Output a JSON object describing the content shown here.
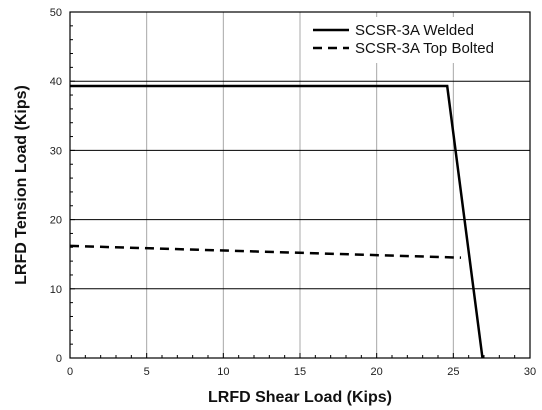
{
  "chart_data": {
    "type": "line",
    "title": "",
    "xlabel": "LRFD Shear Load (Kips)",
    "ylabel": "LRFD Tension Load (Kips)",
    "xlim": [
      0,
      30
    ],
    "ylim": [
      0,
      50
    ],
    "x_ticks": [
      0,
      5,
      10,
      15,
      20,
      25,
      30
    ],
    "y_ticks": [
      0,
      10,
      20,
      30,
      40,
      50
    ],
    "grid": true,
    "legend_position": "top-right",
    "series": [
      {
        "name": "SCSR-3A Welded",
        "line_style": "solid",
        "color": "#000000",
        "x": [
          0,
          24.6,
          26.9
        ],
        "y": [
          39.3,
          39.3,
          0
        ]
      },
      {
        "name": "SCSR-3A Top Bolted",
        "line_style": "dashed",
        "color": "#000000",
        "x": [
          0,
          25.5
        ],
        "y": [
          16.2,
          14.5
        ]
      }
    ]
  }
}
